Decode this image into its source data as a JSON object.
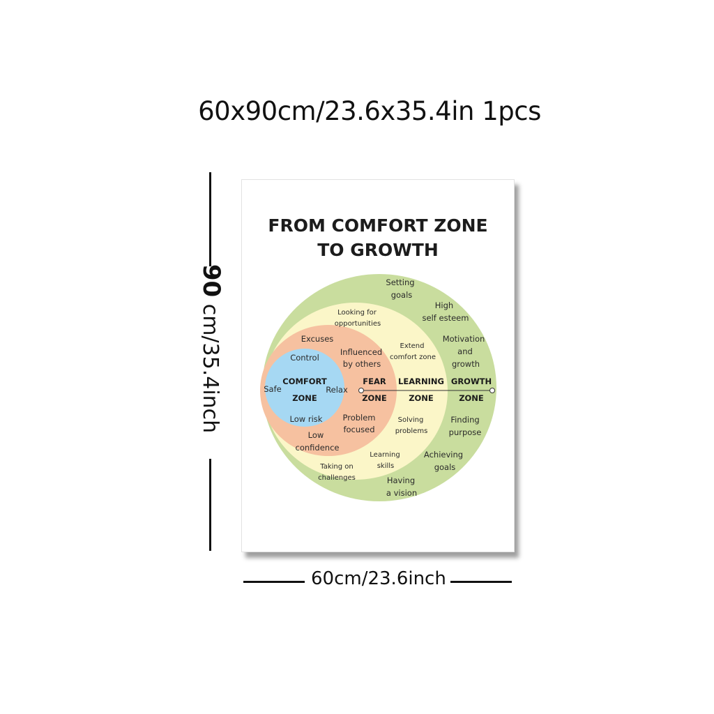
{
  "headline": "60x90cm/23.6x35.4in 1pcs",
  "dimensions": {
    "height_number": "90",
    "height_unit": "cm/35.4inch",
    "width_label": "60cm/23.6inch"
  },
  "poster": {
    "title_line1": "FROM COMFORT ZONE",
    "title_line2": "TO GROWTH"
  },
  "zones": {
    "comfort": {
      "color": "#a6d8f3",
      "line1": "COMFORT",
      "line2": "ZONE",
      "items": [
        "Control",
        "Safe",
        "Relax",
        "Low risk"
      ]
    },
    "fear": {
      "color": "#f6c1a0",
      "line1": "FEAR",
      "line2": "ZONE",
      "items": [
        "Excuses",
        "Influenced",
        "by others",
        "Problem",
        "focused",
        "Low",
        "confidence"
      ]
    },
    "learning": {
      "color": "#fbf6c8",
      "line1": "LEARNING",
      "line2": "ZONE",
      "items": [
        "Looking for",
        "opportunities",
        "Extend",
        "comfort zone",
        "Solving",
        "problems",
        "Learning",
        "skills",
        "Taking on",
        "challenges"
      ]
    },
    "growth": {
      "color": "#c9dd9e",
      "line1": "GROWTH",
      "line2": "ZONE",
      "items": [
        "Setting",
        "goals",
        "High",
        "self esteem",
        "Motivation",
        "and",
        "growth",
        "Finding",
        "purpose",
        "Achieving",
        "goals",
        "Having",
        "a vision"
      ]
    }
  }
}
